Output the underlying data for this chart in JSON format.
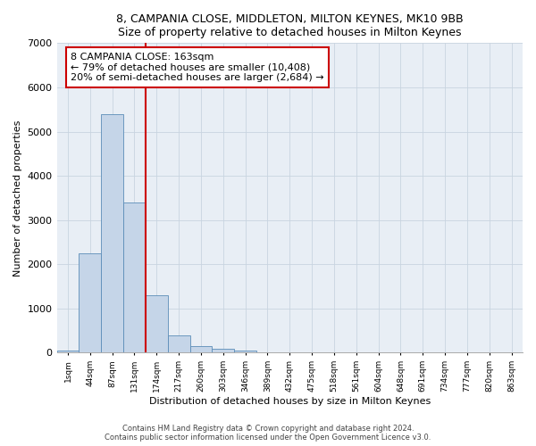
{
  "title1": "8, CAMPANIA CLOSE, MIDDLETON, MILTON KEYNES, MK10 9BB",
  "title2": "Size of property relative to detached houses in Milton Keynes",
  "xlabel": "Distribution of detached houses by size in Milton Keynes",
  "ylabel": "Number of detached properties",
  "footer1": "Contains HM Land Registry data © Crown copyright and database right 2024.",
  "footer2": "Contains public sector information licensed under the Open Government Licence v3.0.",
  "bar_color": "#c5d5e8",
  "bar_edge_color": "#5b8db8",
  "bar_width": 1.0,
  "categories": [
    "1sqm",
    "44sqm",
    "87sqm",
    "131sqm",
    "174sqm",
    "217sqm",
    "260sqm",
    "303sqm",
    "346sqm",
    "389sqm",
    "432sqm",
    "475sqm",
    "518sqm",
    "561sqm",
    "604sqm",
    "648sqm",
    "691sqm",
    "734sqm",
    "777sqm",
    "820sqm",
    "863sqm"
  ],
  "values": [
    55,
    2250,
    5400,
    3400,
    1300,
    400,
    150,
    80,
    40,
    5,
    0,
    0,
    0,
    0,
    0,
    0,
    0,
    0,
    0,
    0,
    0
  ],
  "ylim": [
    0,
    7000
  ],
  "yticks": [
    0,
    1000,
    2000,
    3000,
    4000,
    5000,
    6000,
    7000
  ],
  "annotation_text": "8 CAMPANIA CLOSE: 163sqm\n← 79% of detached houses are smaller (10,408)\n20% of semi-detached houses are larger (2,684) →",
  "annotation_box_color": "#ffffff",
  "annotation_box_edge": "#cc0000",
  "red_line_color": "#cc0000",
  "plot_bg_color": "#e8eef5",
  "grid_color": "#c8d4e0"
}
